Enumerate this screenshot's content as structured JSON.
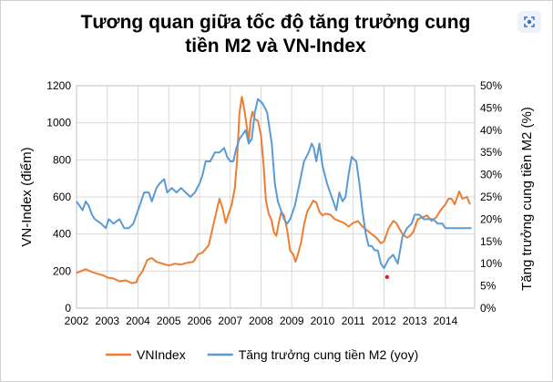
{
  "chart_data": {
    "type": "line",
    "title_line1": "Tương quan giữa tốc độ tăng trưởng cung",
    "title_line2": "tiền M2 và VN-Index",
    "ylabel_left": "VN-Index (điểm)",
    "ylabel_right": "Tăng trưởng cung tiền M2 (%)",
    "ylim_left": [
      0,
      1200
    ],
    "ylim_right": [
      0,
      50
    ],
    "yticks_left": [
      "0",
      "200",
      "400",
      "600",
      "800",
      "1000",
      "1200"
    ],
    "yticks_right": [
      "0%",
      "5%",
      "10%",
      "15%",
      "20%",
      "25%",
      "30%",
      "35%",
      "40%",
      "45%",
      "50%"
    ],
    "xlim": [
      2002,
      2014.95
    ],
    "xticks": [
      "2002",
      "2003",
      "2004",
      "2005",
      "2006",
      "2007",
      "2008",
      "2009",
      "2010",
      "2011",
      "2012",
      "2013",
      "2014"
    ],
    "grid": true,
    "legend_position": "bottom",
    "series": [
      {
        "name": "VNIndex",
        "axis": "left",
        "color": "#ed7d31",
        "points": [
          [
            2002.0,
            190
          ],
          [
            2002.15,
            200
          ],
          [
            2002.3,
            210
          ],
          [
            2002.5,
            195
          ],
          [
            2002.7,
            185
          ],
          [
            2002.9,
            175
          ],
          [
            2003.0,
            165
          ],
          [
            2003.2,
            160
          ],
          [
            2003.4,
            145
          ],
          [
            2003.6,
            150
          ],
          [
            2003.8,
            135
          ],
          [
            2003.95,
            140
          ],
          [
            2004.0,
            165
          ],
          [
            2004.15,
            200
          ],
          [
            2004.3,
            260
          ],
          [
            2004.45,
            270
          ],
          [
            2004.6,
            250
          ],
          [
            2004.8,
            240
          ],
          [
            2005.0,
            230
          ],
          [
            2005.2,
            240
          ],
          [
            2005.4,
            235
          ],
          [
            2005.6,
            245
          ],
          [
            2005.8,
            250
          ],
          [
            2005.95,
            290
          ],
          [
            2006.1,
            300
          ],
          [
            2006.3,
            340
          ],
          [
            2006.45,
            450
          ],
          [
            2006.55,
            520
          ],
          [
            2006.65,
            590
          ],
          [
            2006.75,
            540
          ],
          [
            2006.85,
            460
          ],
          [
            2006.95,
            510
          ],
          [
            2007.05,
            560
          ],
          [
            2007.15,
            650
          ],
          [
            2007.22,
            790
          ],
          [
            2007.3,
            1050
          ],
          [
            2007.38,
            1140
          ],
          [
            2007.45,
            1080
          ],
          [
            2007.52,
            1000
          ],
          [
            2007.6,
            900
          ],
          [
            2007.66,
            1010
          ],
          [
            2007.72,
            1060
          ],
          [
            2007.8,
            1020
          ],
          [
            2007.9,
            1010
          ],
          [
            2008.0,
            930
          ],
          [
            2008.08,
            780
          ],
          [
            2008.16,
            580
          ],
          [
            2008.25,
            510
          ],
          [
            2008.35,
            470
          ],
          [
            2008.42,
            410
          ],
          [
            2008.5,
            390
          ],
          [
            2008.58,
            460
          ],
          [
            2008.66,
            520
          ],
          [
            2008.75,
            500
          ],
          [
            2008.85,
            420
          ],
          [
            2008.95,
            310
          ],
          [
            2009.05,
            290
          ],
          [
            2009.12,
            250
          ],
          [
            2009.2,
            290
          ],
          [
            2009.3,
            350
          ],
          [
            2009.4,
            450
          ],
          [
            2009.5,
            520
          ],
          [
            2009.6,
            550
          ],
          [
            2009.7,
            580
          ],
          [
            2009.8,
            570
          ],
          [
            2009.9,
            520
          ],
          [
            2010.0,
            500
          ],
          [
            2010.1,
            510
          ],
          [
            2010.25,
            505
          ],
          [
            2010.4,
            480
          ],
          [
            2010.55,
            470
          ],
          [
            2010.7,
            460
          ],
          [
            2010.85,
            440
          ],
          [
            2011.0,
            460
          ],
          [
            2011.15,
            470
          ],
          [
            2011.3,
            440
          ],
          [
            2011.45,
            420
          ],
          [
            2011.6,
            400
          ],
          [
            2011.75,
            380
          ],
          [
            2011.9,
            350
          ],
          [
            2012.0,
            360
          ],
          [
            2012.15,
            430
          ],
          [
            2012.3,
            470
          ],
          [
            2012.4,
            460
          ],
          [
            2012.5,
            430
          ],
          [
            2012.6,
            400
          ],
          [
            2012.75,
            380
          ],
          [
            2012.85,
            390
          ],
          [
            2012.95,
            410
          ],
          [
            2013.1,
            480
          ],
          [
            2013.25,
            490
          ],
          [
            2013.4,
            500
          ],
          [
            2013.55,
            470
          ],
          [
            2013.7,
            490
          ],
          [
            2013.85,
            530
          ],
          [
            2014.0,
            560
          ],
          [
            2014.1,
            590
          ],
          [
            2014.2,
            590
          ],
          [
            2014.3,
            560
          ],
          [
            2014.45,
            630
          ],
          [
            2014.55,
            590
          ],
          [
            2014.7,
            600
          ],
          [
            2014.8,
            560
          ]
        ]
      },
      {
        "name": "Tăng trưởng cung tiền M2 (yoy)",
        "axis": "right",
        "color": "#5b9bd5",
        "points": [
          [
            2002.0,
            24
          ],
          [
            2002.1,
            23
          ],
          [
            2002.2,
            22
          ],
          [
            2002.3,
            24
          ],
          [
            2002.4,
            23
          ],
          [
            2002.5,
            21
          ],
          [
            2002.6,
            20
          ],
          [
            2002.8,
            19
          ],
          [
            2002.95,
            18
          ],
          [
            2003.05,
            20
          ],
          [
            2003.2,
            19
          ],
          [
            2003.4,
            20
          ],
          [
            2003.55,
            18
          ],
          [
            2003.7,
            18
          ],
          [
            2003.85,
            19
          ],
          [
            2004.0,
            22
          ],
          [
            2004.1,
            24
          ],
          [
            2004.2,
            26
          ],
          [
            2004.35,
            26
          ],
          [
            2004.45,
            24
          ],
          [
            2004.6,
            27
          ],
          [
            2004.7,
            28
          ],
          [
            2004.85,
            29
          ],
          [
            2004.95,
            26
          ],
          [
            2005.1,
            27
          ],
          [
            2005.25,
            26
          ],
          [
            2005.4,
            27
          ],
          [
            2005.55,
            26
          ],
          [
            2005.7,
            25
          ],
          [
            2005.85,
            26
          ],
          [
            2006.0,
            28
          ],
          [
            2006.1,
            30
          ],
          [
            2006.2,
            33
          ],
          [
            2006.35,
            33
          ],
          [
            2006.5,
            35
          ],
          [
            2006.65,
            35
          ],
          [
            2006.8,
            36
          ],
          [
            2006.9,
            34
          ],
          [
            2007.0,
            33
          ],
          [
            2007.1,
            33
          ],
          [
            2007.2,
            36
          ],
          [
            2007.3,
            38
          ],
          [
            2007.4,
            39
          ],
          [
            2007.5,
            40
          ],
          [
            2007.6,
            37
          ],
          [
            2007.7,
            38
          ],
          [
            2007.8,
            44
          ],
          [
            2007.9,
            47
          ],
          [
            2008.05,
            46
          ],
          [
            2008.2,
            44
          ],
          [
            2008.35,
            37
          ],
          [
            2008.45,
            28
          ],
          [
            2008.55,
            24
          ],
          [
            2008.65,
            22
          ],
          [
            2008.75,
            20
          ],
          [
            2008.85,
            19
          ],
          [
            2008.95,
            20
          ],
          [
            2009.1,
            23
          ],
          [
            2009.25,
            28
          ],
          [
            2009.4,
            33
          ],
          [
            2009.55,
            35
          ],
          [
            2009.65,
            37
          ],
          [
            2009.72,
            36
          ],
          [
            2009.8,
            33
          ],
          [
            2009.9,
            37
          ],
          [
            2010.0,
            32
          ],
          [
            2010.15,
            28
          ],
          [
            2010.3,
            25
          ],
          [
            2010.45,
            22
          ],
          [
            2010.55,
            26
          ],
          [
            2010.65,
            24
          ],
          [
            2010.75,
            25
          ],
          [
            2010.85,
            30
          ],
          [
            2010.95,
            34
          ],
          [
            2011.1,
            33
          ],
          [
            2011.2,
            28
          ],
          [
            2011.3,
            22
          ],
          [
            2011.4,
            17
          ],
          [
            2011.5,
            14
          ],
          [
            2011.6,
            14
          ],
          [
            2011.7,
            13
          ],
          [
            2011.8,
            13
          ],
          [
            2011.9,
            10
          ],
          [
            2012.0,
            9
          ],
          [
            2012.15,
            11
          ],
          [
            2012.3,
            12
          ],
          [
            2012.45,
            10
          ],
          [
            2012.6,
            16
          ],
          [
            2012.75,
            18
          ],
          [
            2012.9,
            19
          ],
          [
            2013.0,
            21
          ],
          [
            2013.15,
            21
          ],
          [
            2013.3,
            20
          ],
          [
            2013.45,
            20
          ],
          [
            2013.6,
            20
          ],
          [
            2013.75,
            19
          ],
          [
            2013.9,
            19
          ],
          [
            2014.0,
            18
          ],
          [
            2014.15,
            18
          ],
          [
            2014.3,
            18
          ],
          [
            2014.45,
            18
          ],
          [
            2014.6,
            18
          ],
          [
            2014.75,
            18
          ],
          [
            2014.85,
            18
          ]
        ]
      }
    ],
    "annotations": [
      {
        "type": "point",
        "x": 2012.1,
        "y": 7,
        "axis": "right",
        "color": "#e0201c"
      }
    ]
  }
}
